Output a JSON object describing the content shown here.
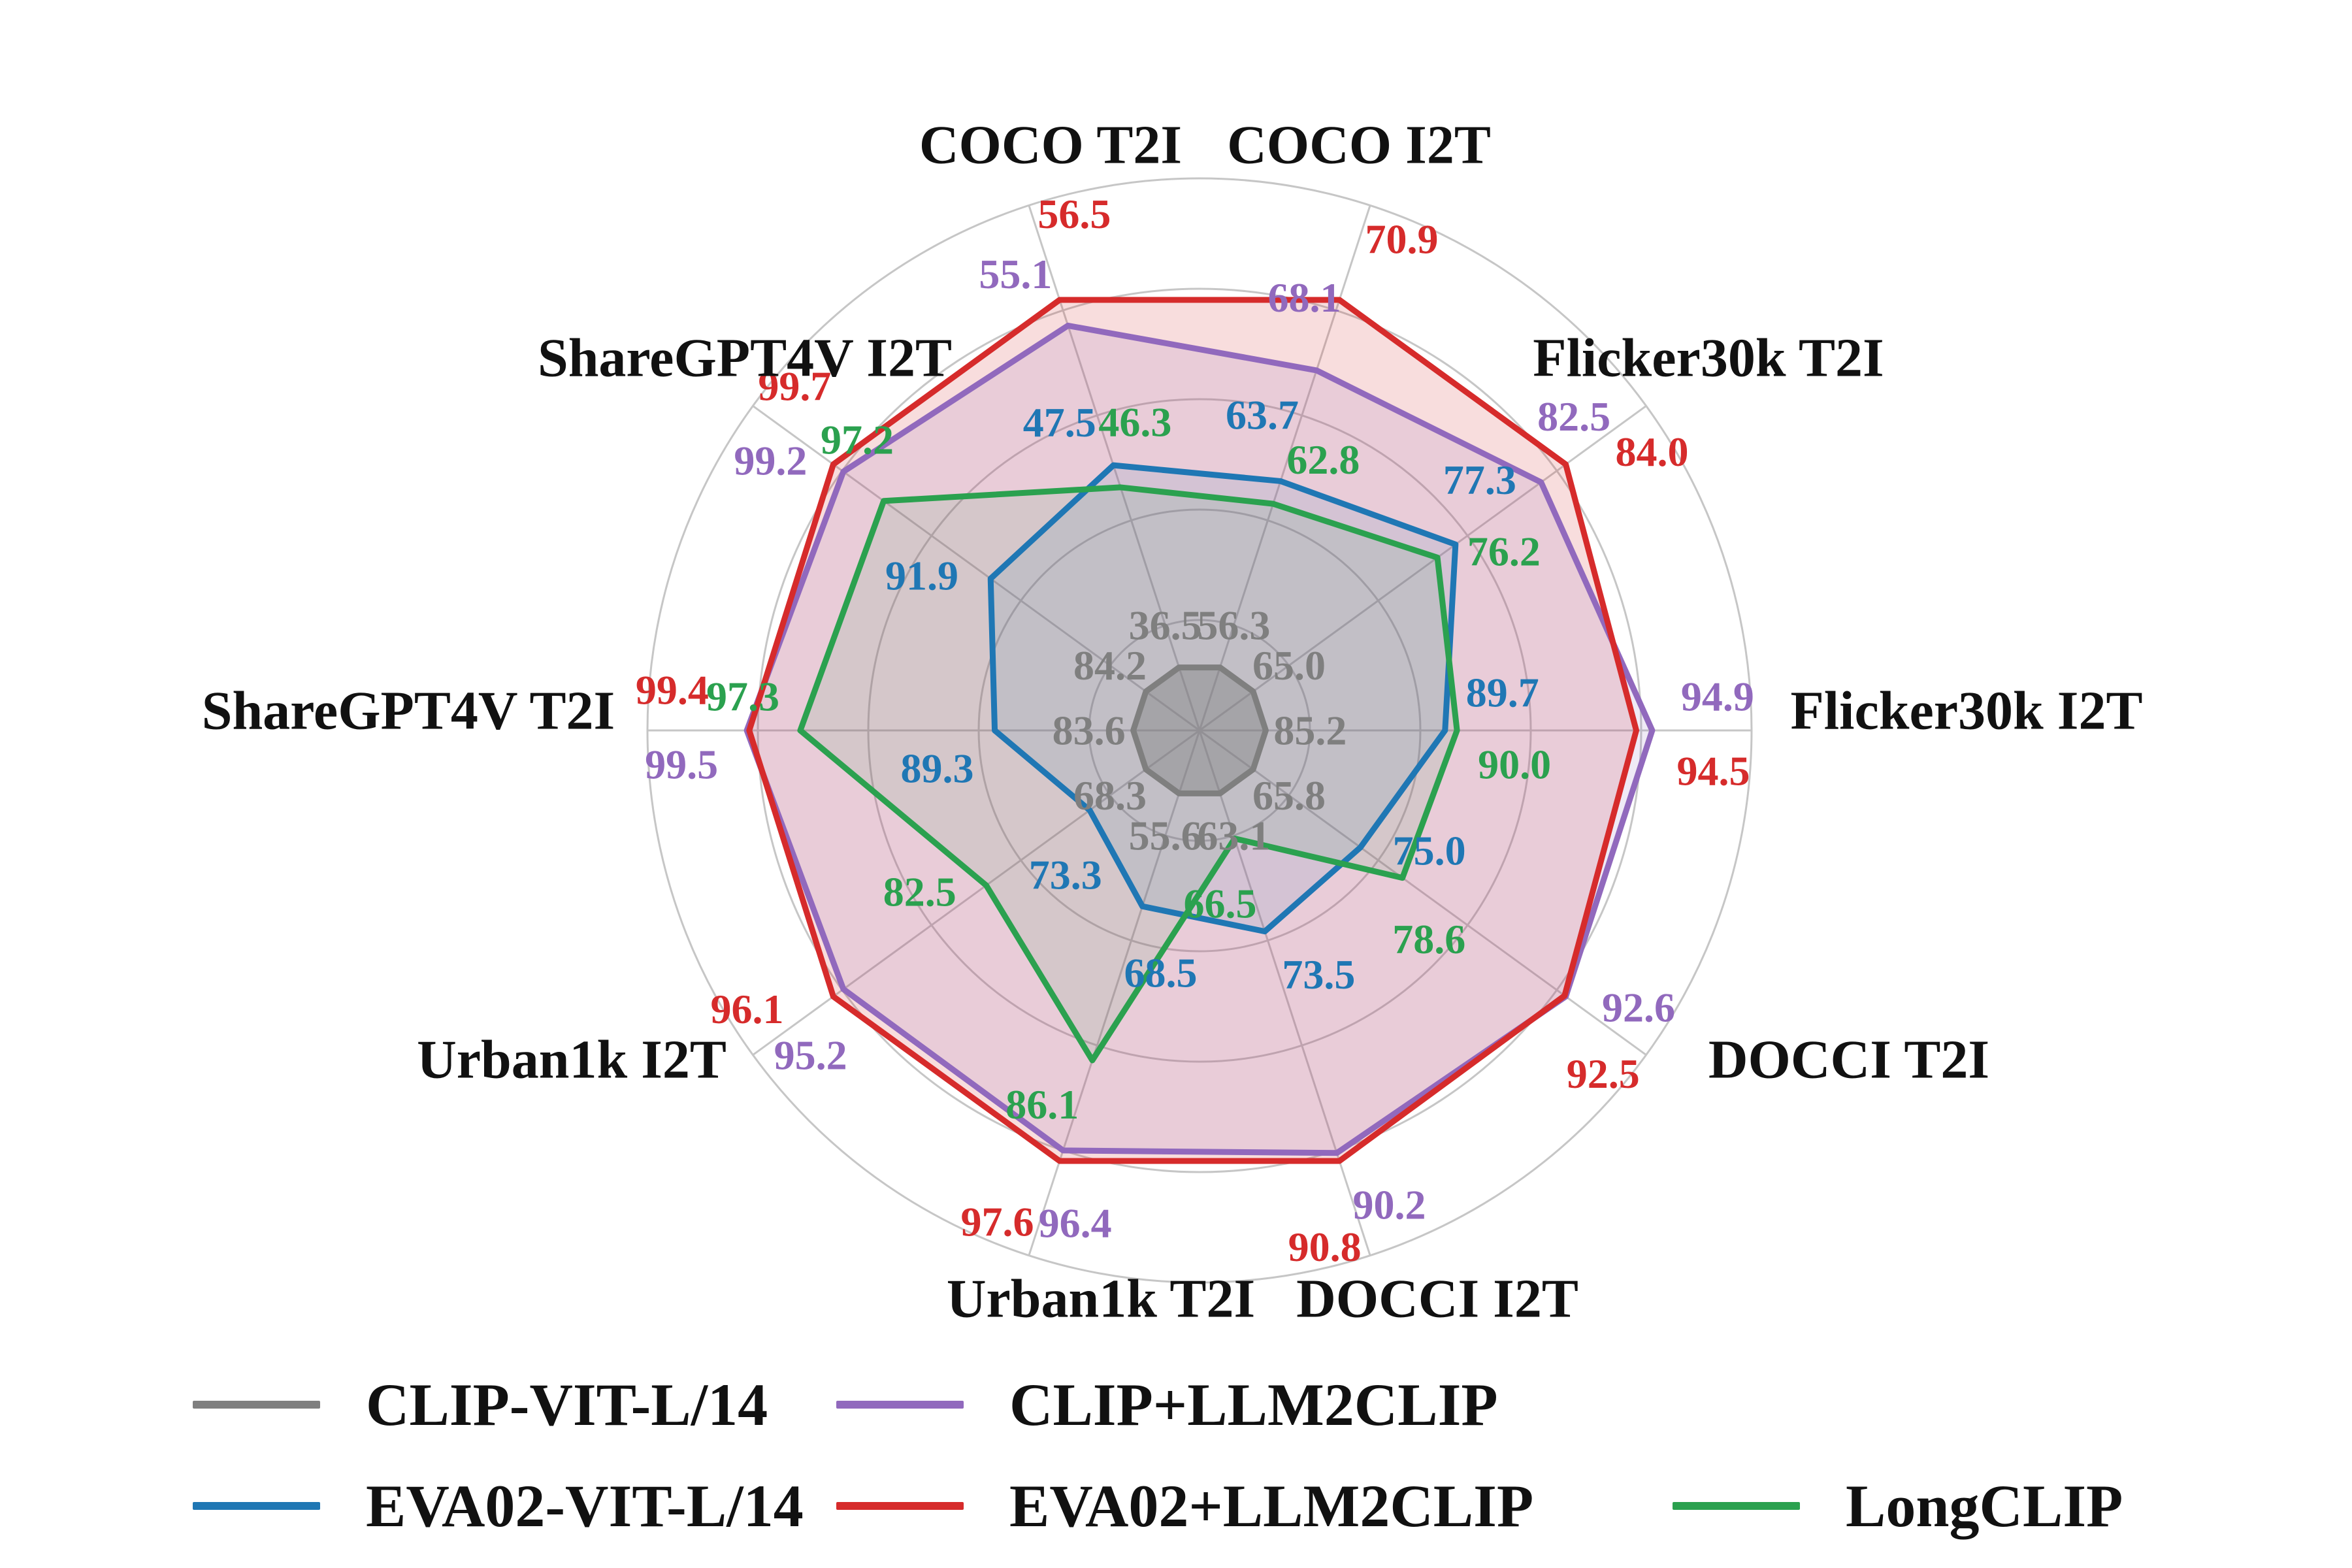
{
  "chart_data": {
    "type": "radar",
    "title": "",
    "categories": [
      "Flicker30k I2T",
      "Flicker30k T2I",
      "COCO I2T",
      "COCO T2I",
      "ShareGPT4V I2T",
      "ShareGPT4V T2I",
      "Urban1k I2T",
      "Urban1k T2I",
      "DOCCI I2T",
      "DOCCI T2I"
    ],
    "series": [
      {
        "name": "CLIP-VIT-L/14",
        "color": "#7f7f7f",
        "values": [
          85.2,
          65.0,
          56.3,
          36.5,
          84.2,
          83.6,
          68.3,
          55.6,
          63.1,
          65.8
        ]
      },
      {
        "name": "EVA02-VIT-L/14",
        "color": "#1f77b4",
        "values": [
          89.7,
          77.3,
          63.7,
          47.5,
          91.9,
          89.3,
          73.3,
          68.5,
          73.5,
          75.0
        ]
      },
      {
        "name": "CLIP+LLM2CLIP",
        "color": "#9169bd",
        "values": [
          94.9,
          82.5,
          68.1,
          55.1,
          99.2,
          99.5,
          95.2,
          96.4,
          90.2,
          92.6
        ]
      },
      {
        "name": "EVA02+LLM2CLIP",
        "color": "#d62b2b",
        "values": [
          94.5,
          84.0,
          70.9,
          56.5,
          99.7,
          99.4,
          96.1,
          97.6,
          90.8,
          92.5
        ]
      },
      {
        "name": "LongCLIP",
        "color": "#2ba14f",
        "values": [
          90.0,
          76.2,
          62.8,
          46.3,
          97.2,
          97.3,
          82.5,
          86.1,
          66.5,
          78.6
        ]
      }
    ],
    "value_label_decimals": 1,
    "layout_hints": {
      "grid": true,
      "grid_rings": 5,
      "normalization": "per-axis min-max",
      "legend_position": "bottom"
    }
  },
  "legend": {
    "rows": [
      [
        "CLIP-VIT-L/14",
        "CLIP+LLM2CLIP"
      ],
      [
        "EVA02-VIT-L/14",
        "EVA02+LLM2CLIP",
        "LongCLIP"
      ]
    ]
  }
}
